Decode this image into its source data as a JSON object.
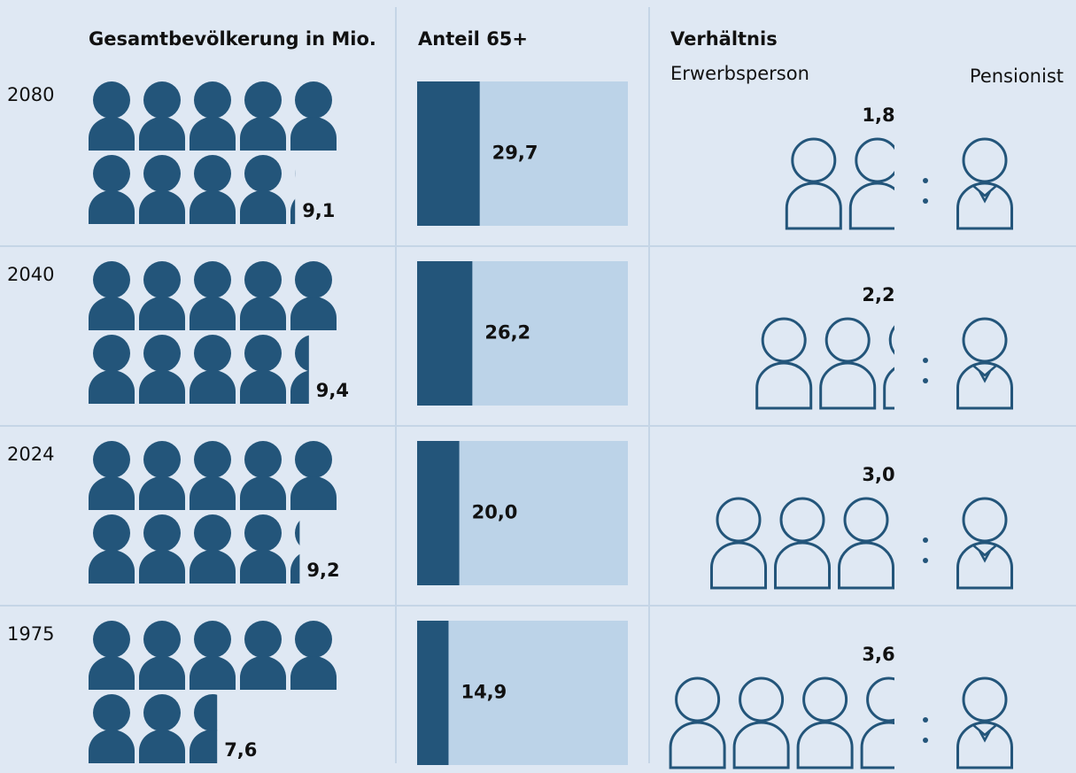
{
  "chart_data": {
    "type": "pictogram",
    "categories": [
      "2080",
      "2040",
      "2024",
      "1975"
    ],
    "series": [
      {
        "name": "Gesamtbevölkerung in Mio.",
        "values": [
          9.1,
          9.4,
          9.2,
          7.6
        ],
        "value_labels": [
          "9,1",
          "9,4",
          "9,2",
          "7,6"
        ],
        "color": "#23557a"
      },
      {
        "name": "Anteil 65+",
        "values": [
          29.7,
          26.2,
          20.0,
          14.9
        ],
        "value_labels": [
          "29,7",
          "26,2",
          "20,0",
          "14,9"
        ],
        "color": "#23557a",
        "background_color": "#bcd3e8",
        "xlim": [
          0,
          100
        ]
      },
      {
        "name": "Verhältnis",
        "values": [
          1.8,
          2.2,
          3.0,
          3.6
        ],
        "value_labels": [
          "1,8",
          "2,2",
          "3,0",
          "3,6"
        ],
        "color": "#23557a"
      }
    ],
    "ratio_labels": [
      "Erwerbsperson",
      "Pensionist"
    ]
  }
}
